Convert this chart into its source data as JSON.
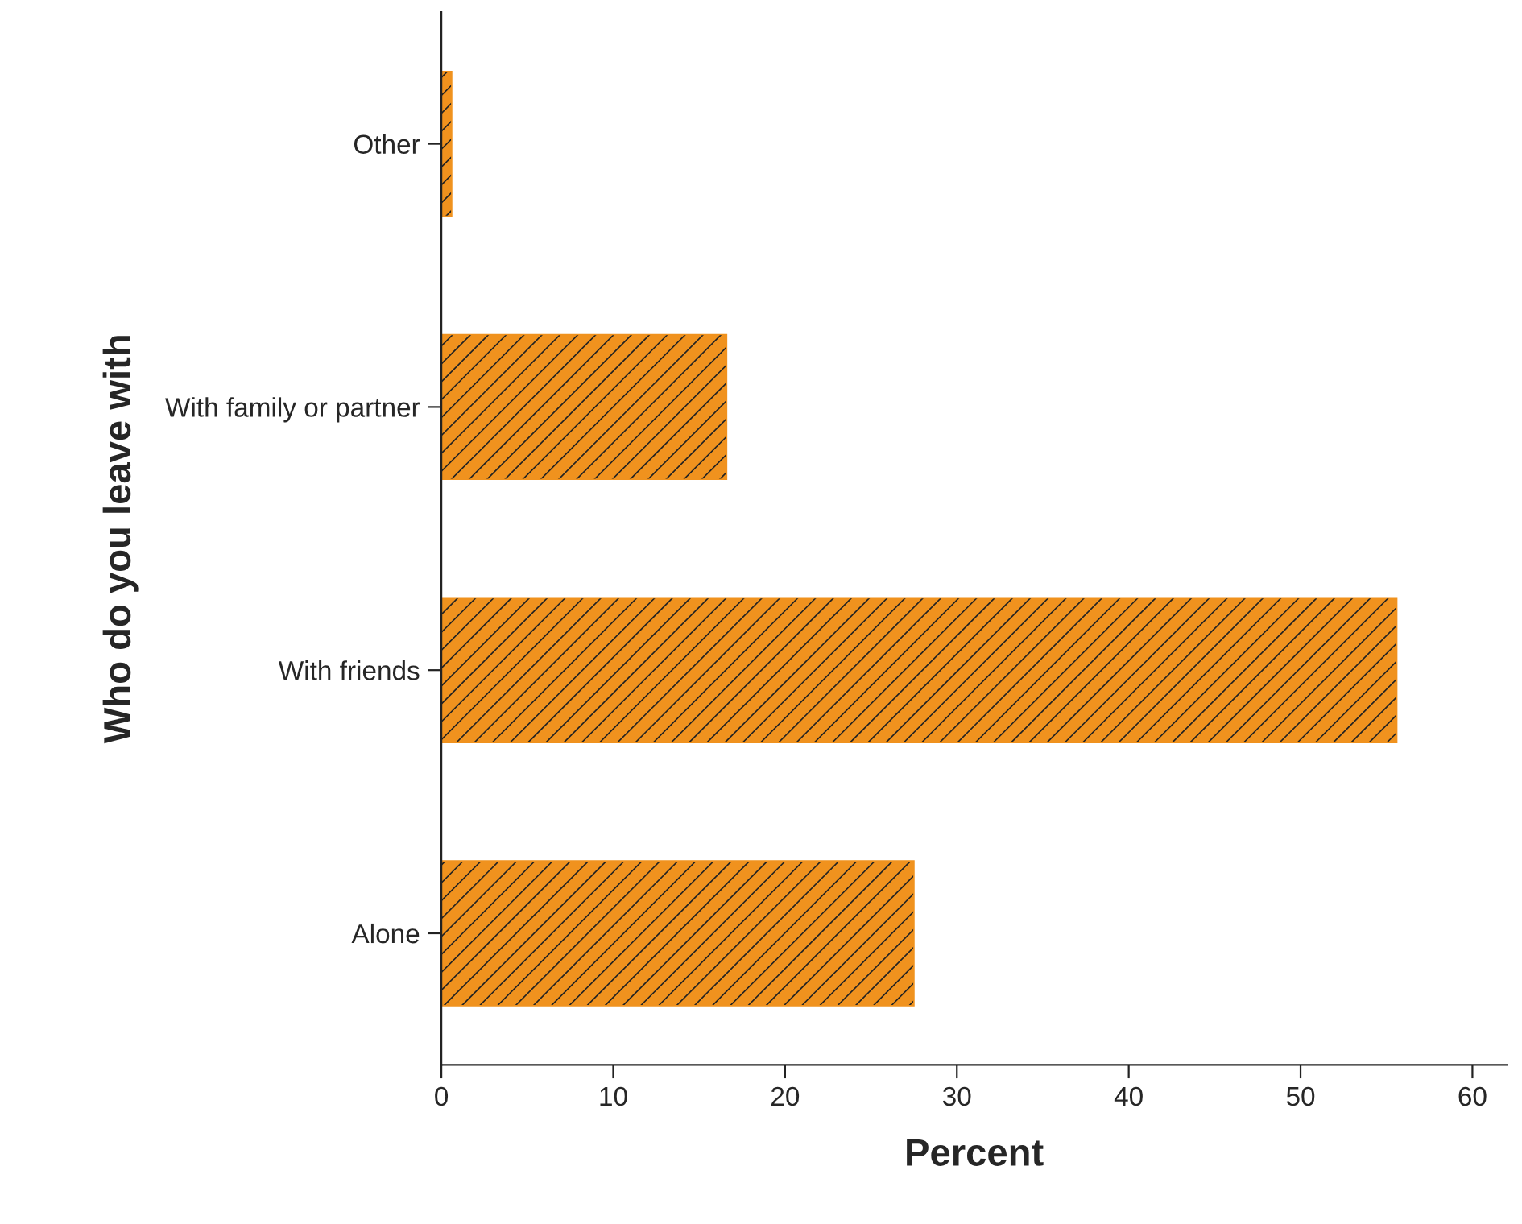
{
  "chart_data": {
    "type": "bar",
    "orientation": "horizontal",
    "xlabel": "Percent",
    "ylabel": "Who do you leave with",
    "categories": [
      "Other",
      "With family or partner",
      "With friends",
      "Alone"
    ],
    "values": [
      0.6,
      16.6,
      55.6,
      27.5
    ],
    "color": "#f0921e",
    "xlim": [
      0,
      62
    ],
    "xticks": [
      0,
      10,
      20,
      30,
      40,
      50,
      60
    ],
    "grid": false
  }
}
